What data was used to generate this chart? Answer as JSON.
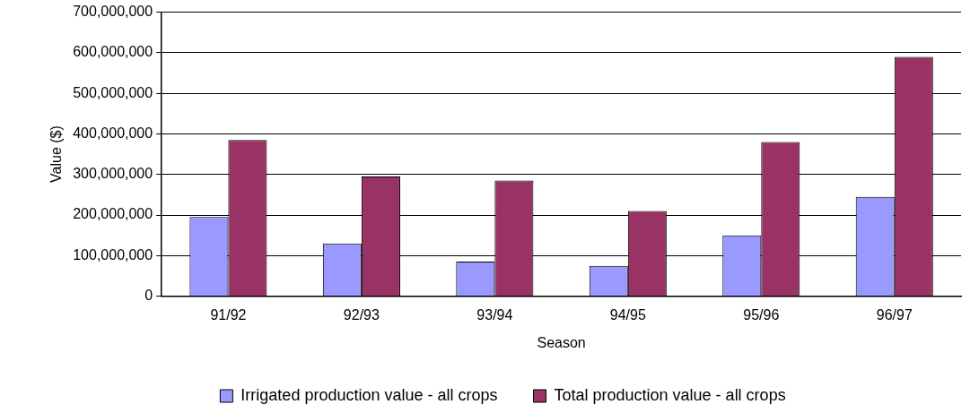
{
  "chart_data": {
    "type": "bar",
    "xlabel": "Season",
    "ylabel": "Value ($)",
    "categories": [
      "91/92",
      "92/93",
      "93/94",
      "94/95",
      "95/96",
      "96/97"
    ],
    "series": [
      {
        "name": "Irrigated production value - all crops",
        "color": "#9999ff",
        "values": [
          195000000,
          130000000,
          85000000,
          75000000,
          150000000,
          245000000
        ]
      },
      {
        "name": "Total production value - all crops",
        "color": "#993366",
        "values": [
          385000000,
          295000000,
          285000000,
          210000000,
          380000000,
          590000000
        ]
      }
    ],
    "ylim": [
      0,
      700000000
    ],
    "yticks": [
      0,
      {
        "value": 100000000,
        "label": "100,000,000"
      },
      {
        "value": 200000000,
        "label": "200,000,000"
      },
      {
        "value": 300000000,
        "label": "300,000,000"
      },
      {
        "value": 400000000,
        "label": "400,000,000"
      },
      {
        "value": 500000000,
        "label": "500,000,000"
      },
      {
        "value": 600000000,
        "label": "600,000,000"
      },
      {
        "value": 700000000,
        "label": "700,000,000"
      }
    ],
    "grid": "y",
    "legend": "bottom"
  }
}
